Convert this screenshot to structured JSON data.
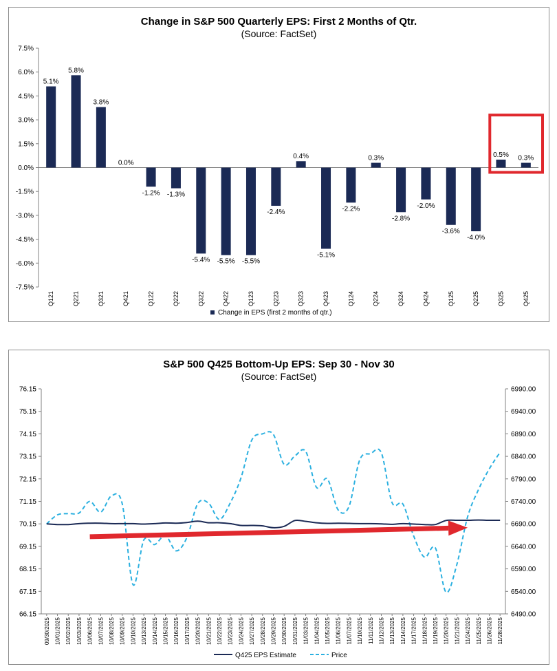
{
  "chart_data": [
    {
      "type": "bar",
      "title": "Change in S&P 500 Quarterly EPS: First 2 Months of Qtr.",
      "subtitle": "(Source: FactSet)",
      "categories": [
        "Q121",
        "Q221",
        "Q321",
        "Q421",
        "Q122",
        "Q222",
        "Q322",
        "Q422",
        "Q123",
        "Q223",
        "Q323",
        "Q423",
        "Q124",
        "Q224",
        "Q324",
        "Q424",
        "Q125",
        "Q225",
        "Q325",
        "Q425"
      ],
      "series": [
        {
          "name": "Change in EPS (first 2 months of qtr.)",
          "values": [
            5.1,
            5.8,
            3.8,
            0.0,
            -1.2,
            -1.3,
            -5.4,
            -5.5,
            -5.5,
            -2.4,
            0.4,
            -5.1,
            -2.2,
            0.3,
            -2.8,
            -2.0,
            -3.6,
            -4.0,
            0.5,
            0.3
          ],
          "data_labels": [
            "5.1%",
            "5.8%",
            "3.8%",
            "0.0%",
            "-1.2%",
            "-1.3%",
            "-5.4%",
            "-5.5%",
            "-5.5%",
            "-2.4%",
            "0.4%",
            "-5.1%",
            "-2.2%",
            "0.3%",
            "-2.8%",
            "-2.0%",
            "-3.6%",
            "-4.0%",
            "0.5%",
            "0.3%"
          ]
        }
      ],
      "y_ticks": [
        "7.5%",
        "6.0%",
        "4.5%",
        "3.0%",
        "1.5%",
        "0.0%",
        "-1.5%",
        "-3.0%",
        "-4.5%",
        "-6.0%",
        "-7.5%"
      ],
      "ylim": [
        -7.5,
        7.5
      ],
      "legend": "bottom",
      "bar_color": "#1b2a55",
      "highlight": {
        "categories": [
          "Q325",
          "Q425"
        ],
        "color": "#e0282d"
      }
    },
    {
      "type": "line",
      "title": "S&P 500 Q425 Bottom-Up EPS: Sep 30 - Nov 30",
      "subtitle": "(Source: FactSet)",
      "x": [
        "09/30/2025",
        "10/01/2025",
        "10/02/2025",
        "10/03/2025",
        "10/06/2025",
        "10/07/2025",
        "10/08/2025",
        "10/09/2025",
        "10/10/2025",
        "10/13/2025",
        "10/14/2025",
        "10/15/2025",
        "10/16/2025",
        "10/17/2025",
        "10/20/2025",
        "10/21/2025",
        "10/22/2025",
        "10/23/2025",
        "10/24/2025",
        "10/27/2025",
        "10/28/2025",
        "10/29/2025",
        "10/30/2025",
        "10/31/2025",
        "11/03/2025",
        "11/04/2025",
        "11/05/2025",
        "11/06/2025",
        "11/07/2025",
        "11/10/2025",
        "11/11/2025",
        "11/12/2025",
        "11/13/2025",
        "11/14/2025",
        "11/17/2025",
        "11/18/2025",
        "11/19/2025",
        "11/20/2025",
        "11/21/2025",
        "11/24/2025",
        "11/25/2025",
        "11/26/2025",
        "11/28/2025"
      ],
      "series": [
        {
          "name": "Q425 EPS Estimate",
          "axis": "left",
          "color": "#1b2a55",
          "dash": "solid",
          "values": [
            70.15,
            70.12,
            70.12,
            70.16,
            70.18,
            70.18,
            70.16,
            70.16,
            70.16,
            70.14,
            70.16,
            70.19,
            70.18,
            70.21,
            70.27,
            70.2,
            70.2,
            70.16,
            70.08,
            70.08,
            70.06,
            69.98,
            70.04,
            70.3,
            70.26,
            70.2,
            70.17,
            70.18,
            70.17,
            70.16,
            70.16,
            70.15,
            70.13,
            70.16,
            70.14,
            70.12,
            70.12,
            70.3,
            70.31,
            70.31,
            70.32,
            70.31,
            70.31
          ]
        },
        {
          "name": "Price",
          "axis": "right",
          "color": "#2bb0e0",
          "dash": "dashed",
          "values": [
            6690,
            6710,
            6713,
            6714,
            6740,
            6716,
            6752,
            6735,
            6555,
            6654,
            6644,
            6664,
            6630,
            6660,
            6735,
            6736,
            6700,
            6736,
            6792,
            6876,
            6890,
            6889,
            6822,
            6841,
            6851,
            6771,
            6790,
            6721,
            6728,
            6832,
            6846,
            6848,
            6737,
            6734,
            6663,
            6616,
            6637,
            6538,
            6600,
            6706,
            6766,
            6812,
            6849
          ]
        }
      ],
      "y_ticks_left": [
        "76.15",
        "75.15",
        "74.15",
        "73.15",
        "72.15",
        "71.15",
        "70.15",
        "69.15",
        "68.15",
        "67.15",
        "66.15"
      ],
      "y_ticks_right": [
        "6990.00",
        "6940.00",
        "6890.00",
        "6840.00",
        "6790.00",
        "6740.00",
        "6690.00",
        "6640.00",
        "6590.00",
        "6540.00",
        "6490.00"
      ],
      "ylim_left": [
        66.15,
        76.15
      ],
      "ylim_right": [
        6490,
        6990
      ],
      "legend": "bottom",
      "annotation_arrow": {
        "from_x": "10/06/2025",
        "to_x": "11/24/2025",
        "from_y": 69.58,
        "to_y": 69.98,
        "color": "#e0282d"
      }
    }
  ]
}
